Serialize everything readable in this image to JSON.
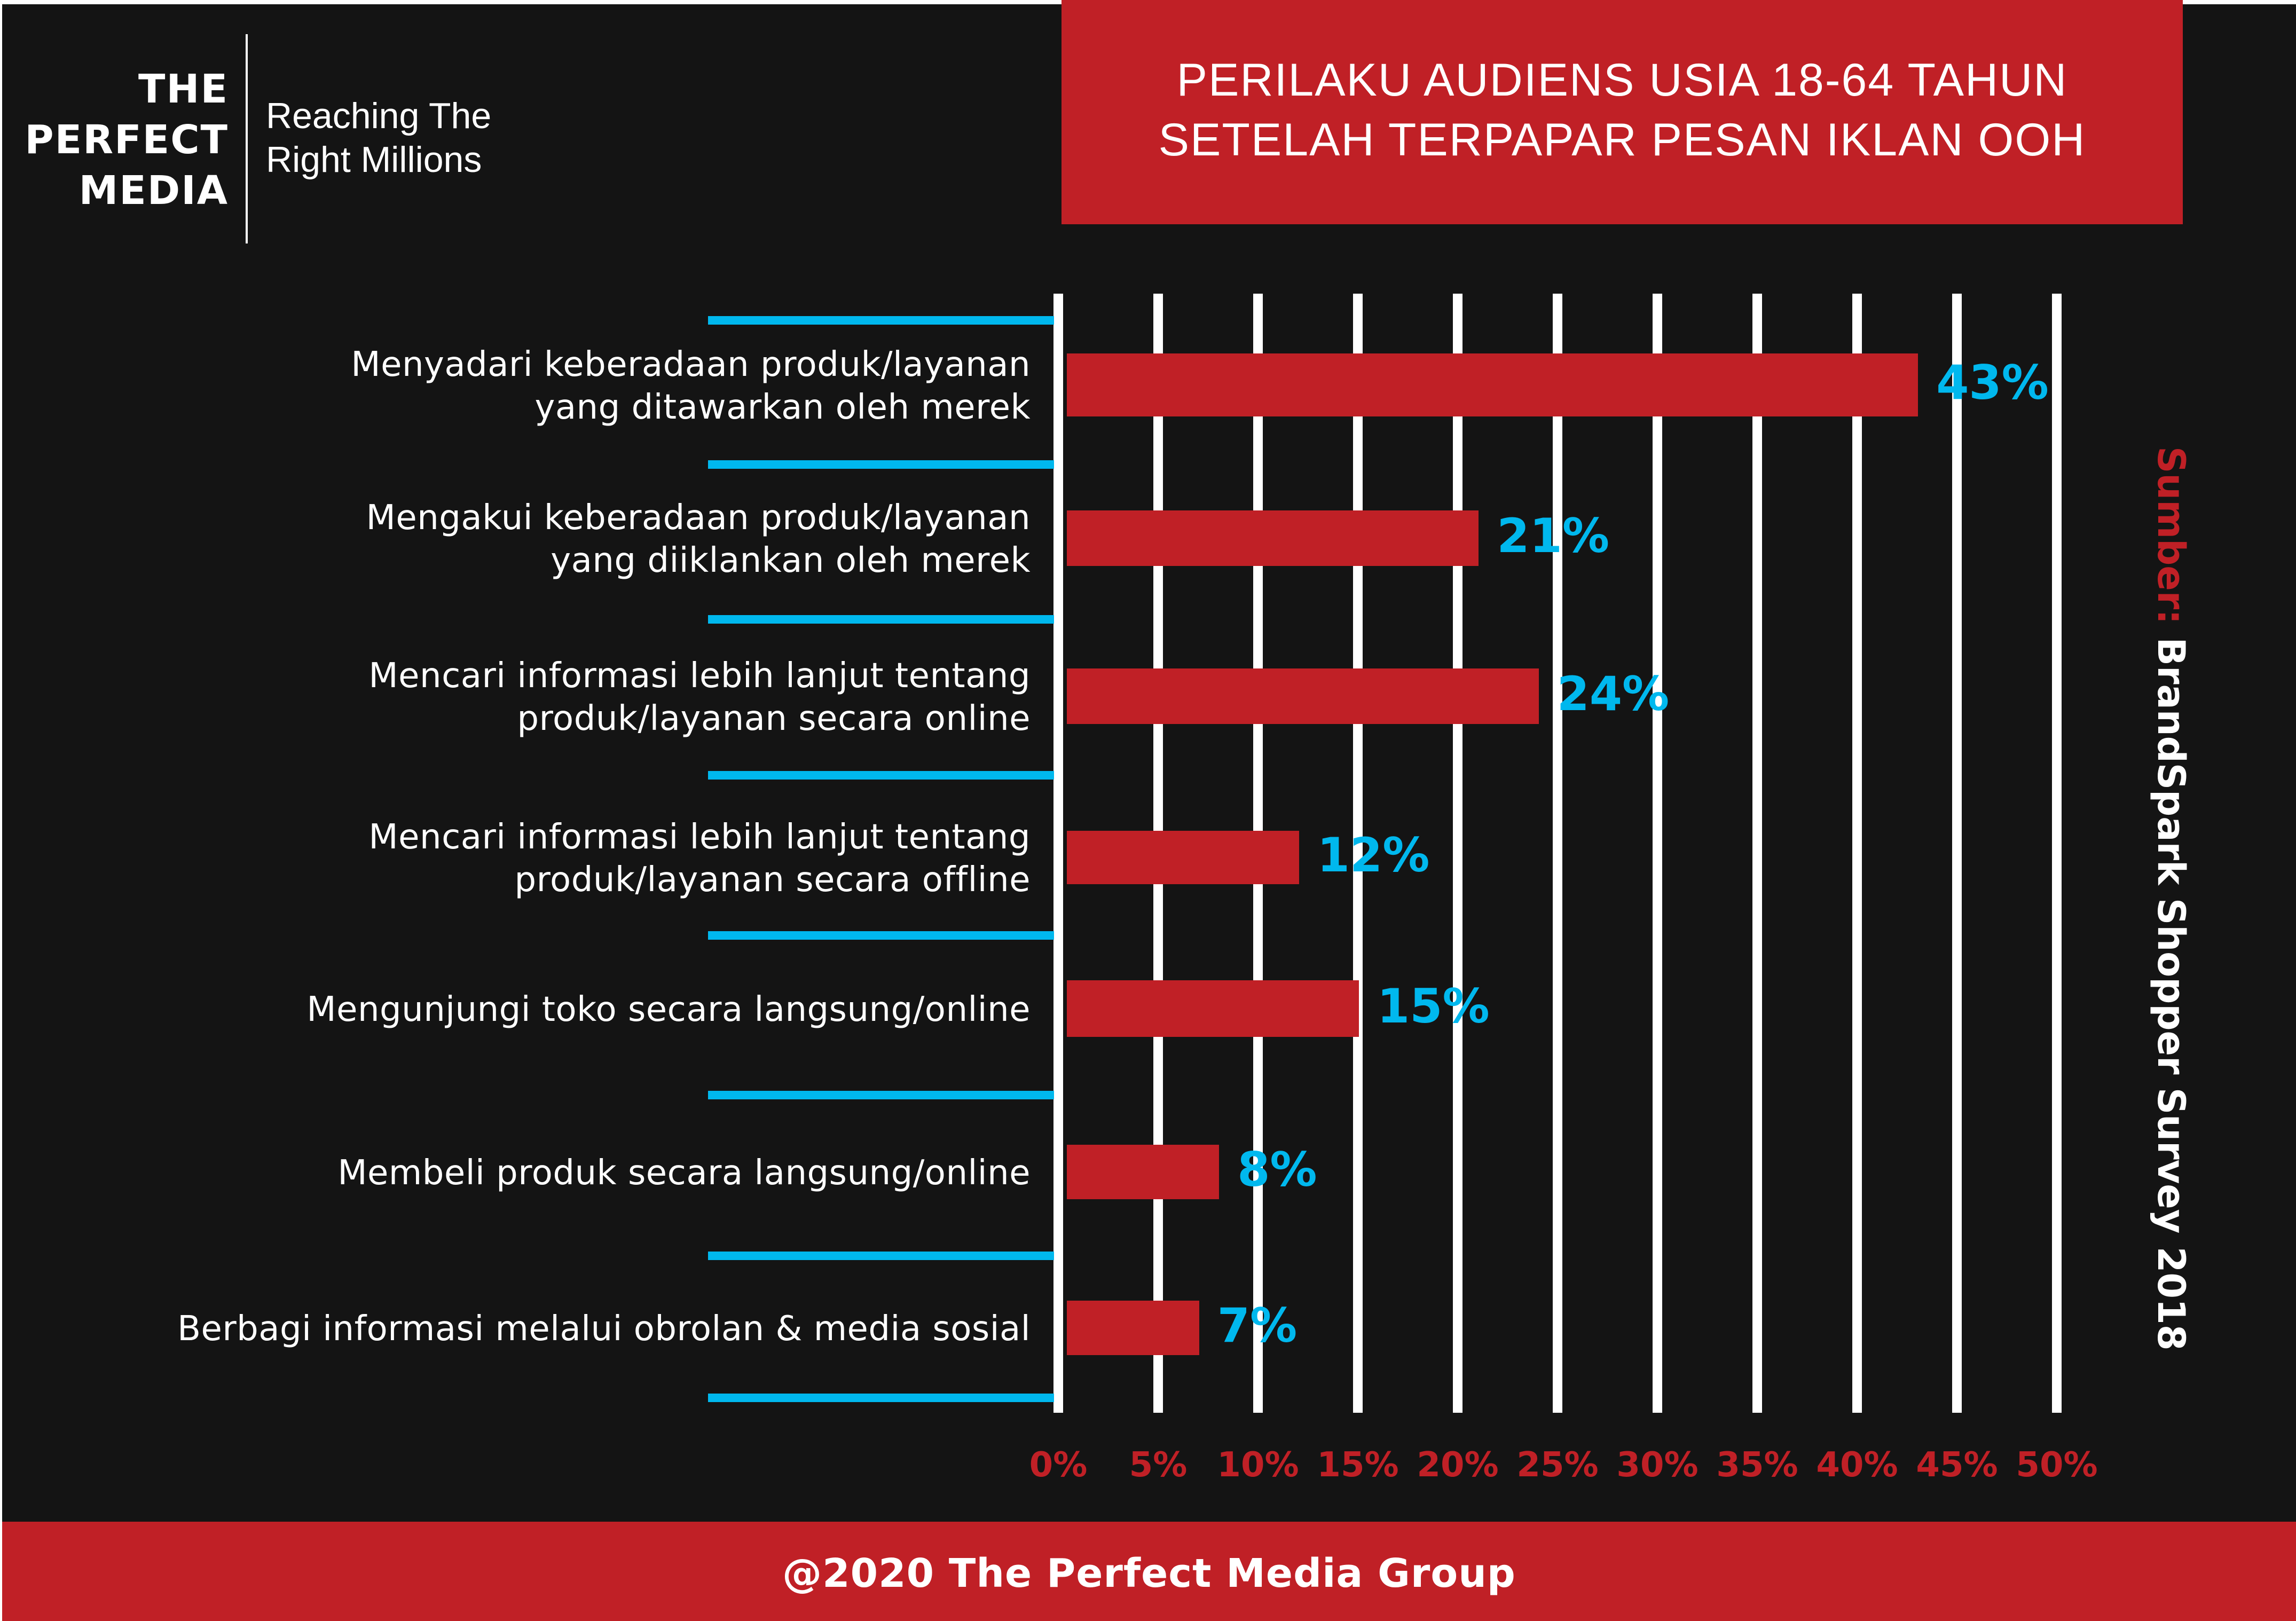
{
  "logo": {
    "brand_lines": [
      "THE",
      "PERFECT",
      "MEDIA"
    ],
    "tagline_lines": [
      "Reaching The",
      "Right Millions"
    ]
  },
  "title": {
    "lines": [
      "PERILAKU AUDIENS USIA 18-64 TAHUN",
      "SETELAH TERPAPAR PESAN IKLAN OOH"
    ]
  },
  "source": {
    "label": "Sumber:",
    "value": " BrandSpark Shopper Survey 2018"
  },
  "footer": {
    "text": "@2020 The Perfect Media Group"
  },
  "colors": {
    "background": "#141414",
    "accent_red": "#c02026",
    "accent_blue": "#00b8ee",
    "gridline": "#ffffff"
  },
  "chart_data": {
    "type": "bar",
    "orientation": "horizontal",
    "title": "PERILAKU AUDIENS USIA 18-64 TAHUN SETELAH TERPAPAR PESAN IKLAN OOH",
    "categories": [
      [
        "Menyadari keberadaan produk/layanan",
        "yang ditawarkan oleh merek"
      ],
      [
        "Mengakui keberadaan produk/layanan",
        "yang diiklankan oleh merek"
      ],
      [
        "Mencari informasi lebih lanjut tentang",
        "produk/layanan secara online"
      ],
      [
        "Mencari informasi lebih lanjut tentang",
        "produk/layanan secara offline"
      ],
      [
        "Mengunjungi toko secara langsung/online"
      ],
      [
        "Membeli produk secara langsung/online"
      ],
      [
        "Berbagi informasi melalui obrolan & media sosial"
      ]
    ],
    "values": [
      43,
      21,
      24,
      12,
      15,
      8,
      7
    ],
    "value_labels": [
      "43%",
      "21%",
      "24%",
      "12%",
      "15%",
      "8%",
      "7%"
    ],
    "xlabel": "",
    "ylabel": "",
    "xlim": [
      0,
      50
    ],
    "x_ticks": [
      "0%",
      "5%",
      "10%",
      "15%",
      "20%",
      "25%",
      "30%",
      "35%",
      "40%",
      "45%",
      "50%"
    ],
    "grid": "vertical",
    "legend": "none",
    "bar_color": "#c02026",
    "label_color": "#00b8ee"
  }
}
